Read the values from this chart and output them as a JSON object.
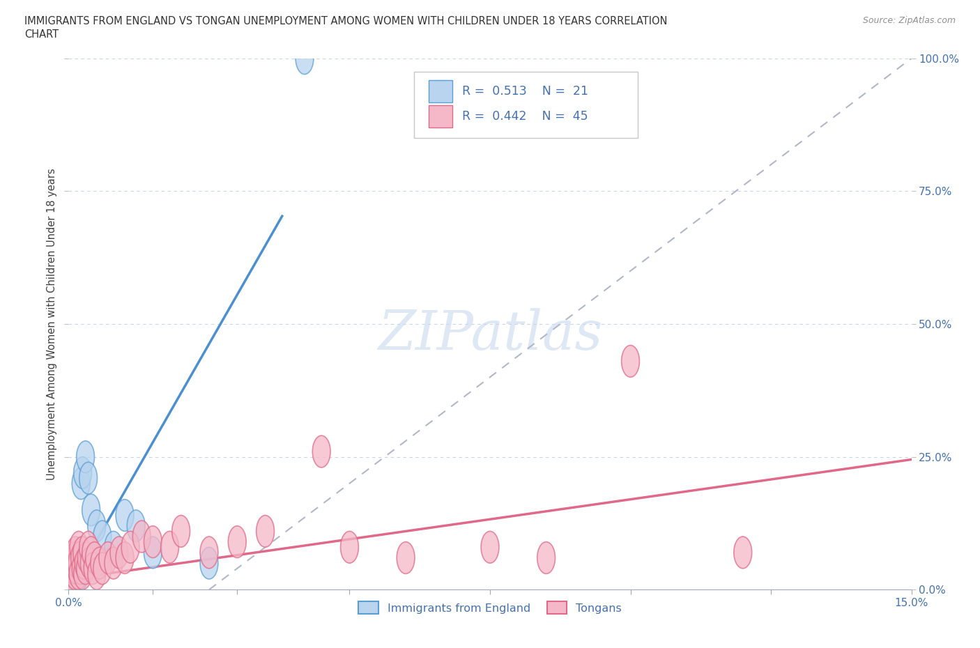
{
  "title_line1": "IMMIGRANTS FROM ENGLAND VS TONGAN UNEMPLOYMENT AMONG WOMEN WITH CHILDREN UNDER 18 YEARS CORRELATION",
  "title_line2": "CHART",
  "source": "Source: ZipAtlas.com",
  "ylabel": "Unemployment Among Women with Children Under 18 years",
  "xlim": [
    0,
    15
  ],
  "ylim": [
    0,
    100
  ],
  "yticks": [
    0,
    25,
    50,
    75,
    100
  ],
  "england_R": 0.513,
  "england_N": 21,
  "tongan_R": 0.442,
  "tongan_N": 45,
  "england_fill": "#b8d4ee",
  "england_edge": "#5a9fd4",
  "tongan_fill": "#f4b8c8",
  "tongan_edge": "#e06888",
  "england_line_color": "#4a90d0",
  "tongan_line_color": "#e06888",
  "ref_line_color": "#b0b8c8",
  "legend_label_england": "Immigrants from England",
  "legend_label_tongan": "Tongans",
  "watermark": "ZIPatlas",
  "england_x": [
    0.05,
    0.08,
    0.1,
    0.12,
    0.14,
    0.16,
    0.18,
    0.2,
    0.22,
    0.25,
    0.3,
    0.35,
    0.4,
    0.5,
    0.6,
    0.8,
    1.0,
    1.2,
    1.5,
    2.5,
    4.2
  ],
  "england_y": [
    1,
    2,
    3,
    1,
    4,
    2,
    5,
    3,
    20,
    22,
    25,
    21,
    15,
    12,
    10,
    8,
    14,
    12,
    7,
    5,
    100
  ],
  "tongan_x": [
    0.03,
    0.05,
    0.06,
    0.08,
    0.1,
    0.11,
    0.12,
    0.14,
    0.15,
    0.17,
    0.18,
    0.2,
    0.22,
    0.24,
    0.25,
    0.27,
    0.3,
    0.32,
    0.35,
    0.37,
    0.4,
    0.43,
    0.46,
    0.5,
    0.55,
    0.6,
    0.7,
    0.8,
    0.9,
    1.0,
    1.1,
    1.3,
    1.5,
    1.8,
    2.0,
    2.5,
    3.0,
    3.5,
    4.5,
    5.0,
    6.0,
    7.5,
    8.5,
    10.0,
    12.0
  ],
  "tongan_y": [
    3,
    2,
    5,
    4,
    6,
    3,
    7,
    4,
    5,
    3,
    8,
    6,
    4,
    7,
    3,
    5,
    4,
    6,
    8,
    5,
    7,
    4,
    6,
    3,
    5,
    4,
    6,
    5,
    7,
    6,
    8,
    10,
    9,
    8,
    11,
    7,
    9,
    11,
    26,
    8,
    6,
    8,
    6,
    43,
    7
  ],
  "xtick_positions": [
    1.5,
    3.0,
    5.0,
    7.5,
    10.0,
    12.5
  ]
}
